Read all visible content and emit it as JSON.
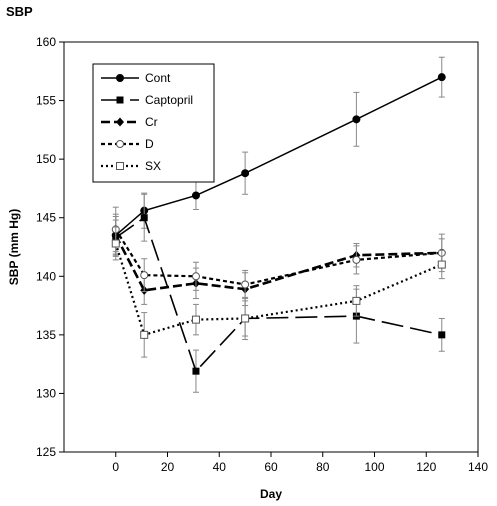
{
  "chart_data": {
    "type": "line",
    "title": "SBP",
    "xlabel": "Day",
    "ylabel": "SBP (mm Hg)",
    "xlim": [
      -20,
      140
    ],
    "ylim": [
      125,
      160
    ],
    "xticks": [
      0,
      20,
      40,
      60,
      80,
      100,
      120,
      140
    ],
    "yticks": [
      125,
      130,
      135,
      140,
      145,
      150,
      155,
      160
    ],
    "grid": false,
    "legend_position": "top-left",
    "series": [
      {
        "name": "Cont",
        "marker": "filled-circle",
        "line": "solid",
        "x": [
          0,
          11,
          31,
          50,
          93,
          126
        ],
        "y": [
          143.5,
          145.6,
          146.9,
          148.8,
          153.4,
          157.0
        ],
        "err": [
          1.8,
          1.5,
          1.2,
          1.8,
          2.3,
          1.7
        ]
      },
      {
        "name": "Captopril",
        "marker": "filled-square",
        "line": "long-dash",
        "x": [
          0,
          11,
          31,
          50,
          93,
          126
        ],
        "y": [
          143.3,
          145.0,
          131.9,
          136.4,
          136.6,
          135.0
        ],
        "err": [
          1.5,
          2.0,
          1.8,
          1.8,
          2.3,
          1.4
        ]
      },
      {
        "name": "Cr",
        "marker": "filled-diamond",
        "line": "dash",
        "x": [
          0,
          11,
          31,
          50,
          93,
          126
        ],
        "y": [
          143.5,
          138.8,
          139.4,
          138.9,
          141.8,
          142.0
        ],
        "err": [
          1.6,
          1.2,
          1.3,
          1.4,
          1.0,
          1.2
        ]
      },
      {
        "name": "D",
        "marker": "open-circle",
        "line": "short-dash",
        "x": [
          0,
          11,
          31,
          50,
          93,
          126
        ],
        "y": [
          144.0,
          140.1,
          140.0,
          139.3,
          141.4,
          142.0
        ],
        "err": [
          1.9,
          1.4,
          1.2,
          1.2,
          1.2,
          1.6
        ]
      },
      {
        "name": "SX",
        "marker": "open-square",
        "line": "dot",
        "x": [
          0,
          11,
          31,
          50,
          93,
          126
        ],
        "y": [
          142.8,
          135.0,
          136.3,
          136.4,
          137.9,
          141.0
        ],
        "err": [
          1.4,
          1.9,
          1.3,
          1.5,
          1.3,
          1.2
        ]
      }
    ]
  }
}
